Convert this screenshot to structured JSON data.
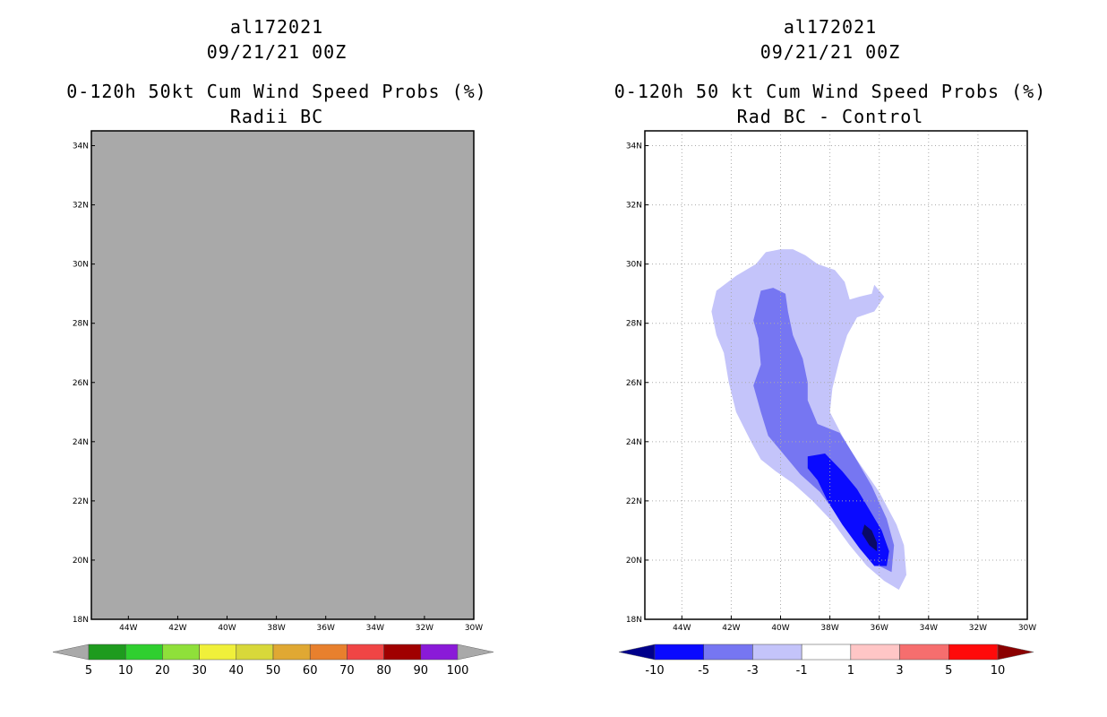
{
  "chart_data": [
    {
      "type": "heatmap",
      "storm_id": "al172021",
      "datetime": "09/21/21 00Z",
      "title": "0-120h 50kt Cum Wind Speed Probs (%)",
      "subtitle": "Radii BC",
      "xlim": [
        -45.5,
        -30
      ],
      "ylim": [
        18,
        34.5
      ],
      "x_ticks": [
        {
          "value": -44,
          "label": "44W"
        },
        {
          "value": -42,
          "label": "42W"
        },
        {
          "value": -40,
          "label": "40W"
        },
        {
          "value": -38,
          "label": "38W"
        },
        {
          "value": -36,
          "label": "36W"
        },
        {
          "value": -34,
          "label": "34W"
        },
        {
          "value": -32,
          "label": "32W"
        },
        {
          "value": -30,
          "label": "30W"
        }
      ],
      "y_ticks": [
        {
          "value": 18,
          "label": "18N"
        },
        {
          "value": 20,
          "label": "20N"
        },
        {
          "value": 22,
          "label": "22N"
        },
        {
          "value": 24,
          "label": "24N"
        },
        {
          "value": 26,
          "label": "26N"
        },
        {
          "value": 28,
          "label": "28N"
        },
        {
          "value": 30,
          "label": "30N"
        },
        {
          "value": 32,
          "label": "32N"
        },
        {
          "value": 34,
          "label": "34N"
        }
      ],
      "grid": false,
      "field_note": "entire domain below 5% (uniform gray)",
      "background_color": "#a9a9a9",
      "colorbar": {
        "labels": [
          "5",
          "10",
          "20",
          "30",
          "40",
          "50",
          "60",
          "70",
          "80",
          "90",
          "100"
        ],
        "colors": [
          "#1e9b1e",
          "#2fcf2f",
          "#8fe03a",
          "#f0f03a",
          "#d8d83a",
          "#e0a833",
          "#e8802d",
          "#f04545",
          "#a00000",
          "#8a1ad8"
        ],
        "under_color": "#a9a9a9",
        "over_color": "#a9a9a9"
      }
    },
    {
      "type": "heatmap",
      "storm_id": "al172021",
      "datetime": "09/21/21 00Z",
      "title": "0-120h 50 kt Cum Wind Speed Probs (%)",
      "subtitle": "Rad BC - Control",
      "xlim": [
        -45.5,
        -30
      ],
      "ylim": [
        18,
        34.5
      ],
      "x_ticks": [
        {
          "value": -44,
          "label": "44W"
        },
        {
          "value": -42,
          "label": "42W"
        },
        {
          "value": -40,
          "label": "40W"
        },
        {
          "value": -38,
          "label": "38W"
        },
        {
          "value": -36,
          "label": "36W"
        },
        {
          "value": -34,
          "label": "34W"
        },
        {
          "value": -32,
          "label": "32W"
        },
        {
          "value": -30,
          "label": "30W"
        }
      ],
      "y_ticks": [
        {
          "value": 18,
          "label": "18N"
        },
        {
          "value": 20,
          "label": "20N"
        },
        {
          "value": 22,
          "label": "22N"
        },
        {
          "value": 24,
          "label": "24N"
        },
        {
          "value": 26,
          "label": "26N"
        },
        {
          "value": 28,
          "label": "28N"
        },
        {
          "value": 30,
          "label": "30N"
        },
        {
          "value": 32,
          "label": "32N"
        },
        {
          "value": 34,
          "label": "34N"
        }
      ],
      "grid": true,
      "background_color": "#ffffff",
      "contours": [
        {
          "level": "-3 to -1",
          "color": "#c4c4fa",
          "polygon": [
            [
              -40,
              30.5
            ],
            [
              -39.5,
              30.5
            ],
            [
              -39,
              30.3
            ],
            [
              -38.5,
              30
            ],
            [
              -37.8,
              29.8
            ],
            [
              -37.4,
              29.4
            ],
            [
              -37.2,
              28.8
            ],
            [
              -36.8,
              28.9
            ],
            [
              -36.3,
              29
            ],
            [
              -36.2,
              29.3
            ],
            [
              -35.8,
              28.9
            ],
            [
              -36.2,
              28.4
            ],
            [
              -36.9,
              28.2
            ],
            [
              -37.3,
              27.6
            ],
            [
              -37.6,
              26.8
            ],
            [
              -37.9,
              25.8
            ],
            [
              -38,
              25
            ],
            [
              -37.5,
              24.2
            ],
            [
              -37,
              23.5
            ],
            [
              -36,
              22.3
            ],
            [
              -35.3,
              21.2
            ],
            [
              -35,
              20.5
            ],
            [
              -34.9,
              19.5
            ],
            [
              -35.2,
              19
            ],
            [
              -35.8,
              19.3
            ],
            [
              -36.5,
              19.8
            ],
            [
              -37.2,
              20.5
            ],
            [
              -37.9,
              21.3
            ],
            [
              -38.7,
              22
            ],
            [
              -39.5,
              22.6
            ],
            [
              -40.2,
              23
            ],
            [
              -40.8,
              23.4
            ],
            [
              -41.2,
              24
            ],
            [
              -41.8,
              25
            ],
            [
              -42.1,
              26
            ],
            [
              -42.3,
              27
            ],
            [
              -42.6,
              27.6
            ],
            [
              -42.8,
              28.4
            ],
            [
              -42.6,
              29.1
            ],
            [
              -41.8,
              29.6
            ],
            [
              -41,
              30
            ],
            [
              -40.6,
              30.4
            ]
          ]
        },
        {
          "level": "-5 to -3",
          "color": "#7676f2",
          "polygon": [
            [
              -40.8,
              29.1
            ],
            [
              -40.3,
              29.2
            ],
            [
              -39.8,
              29
            ],
            [
              -39.7,
              28.4
            ],
            [
              -39.5,
              27.6
            ],
            [
              -39.1,
              26.8
            ],
            [
              -38.9,
              26
            ],
            [
              -38.9,
              25.4
            ],
            [
              -38.5,
              24.6
            ],
            [
              -37.6,
              24.3
            ],
            [
              -37,
              23.5
            ],
            [
              -36.3,
              22.5
            ],
            [
              -35.7,
              21.4
            ],
            [
              -35.4,
              20.5
            ],
            [
              -35.5,
              19.6
            ],
            [
              -36,
              19.8
            ],
            [
              -36.8,
              20.5
            ],
            [
              -37.6,
              21.4
            ],
            [
              -38.4,
              22.3
            ],
            [
              -39.2,
              22.9
            ],
            [
              -39.9,
              23.6
            ],
            [
              -40.5,
              24.2
            ],
            [
              -40.8,
              25
            ],
            [
              -41.1,
              25.9
            ],
            [
              -40.8,
              26.6
            ],
            [
              -40.9,
              27.5
            ],
            [
              -41.1,
              28.1
            ]
          ]
        },
        {
          "level": "-10 to -5",
          "color": "#0a0aff",
          "polygon": [
            [
              -38.9,
              23.5
            ],
            [
              -38.2,
              23.6
            ],
            [
              -37.5,
              23
            ],
            [
              -36.9,
              22.4
            ],
            [
              -36.4,
              21.7
            ],
            [
              -35.9,
              21
            ],
            [
              -35.6,
              20.3
            ],
            [
              -35.7,
              19.8
            ],
            [
              -36.2,
              19.8
            ],
            [
              -36.8,
              20.4
            ],
            [
              -37.5,
              21.2
            ],
            [
              -38.1,
              22
            ],
            [
              -38.5,
              22.7
            ],
            [
              -38.9,
              23.1
            ]
          ]
        },
        {
          "level": "< -10",
          "color": "#0a0a66",
          "polygon": [
            [
              -36.6,
              21.2
            ],
            [
              -36.3,
              21
            ],
            [
              -36.1,
              20.6
            ],
            [
              -36.1,
              20.3
            ],
            [
              -36.4,
              20.5
            ],
            [
              -36.7,
              20.9
            ]
          ]
        }
      ],
      "colorbar": {
        "labels": [
          "-10",
          "-5",
          "-3",
          "-1",
          "1",
          "3",
          "5",
          "10"
        ],
        "colors": [
          "#0a0aff",
          "#7676f2",
          "#c4c4fa",
          "#ffffff",
          "#ffc6c6",
          "#f66e6e",
          "#ff0a0a"
        ],
        "under_color": "#00008b",
        "over_color": "#8b0000"
      }
    }
  ]
}
